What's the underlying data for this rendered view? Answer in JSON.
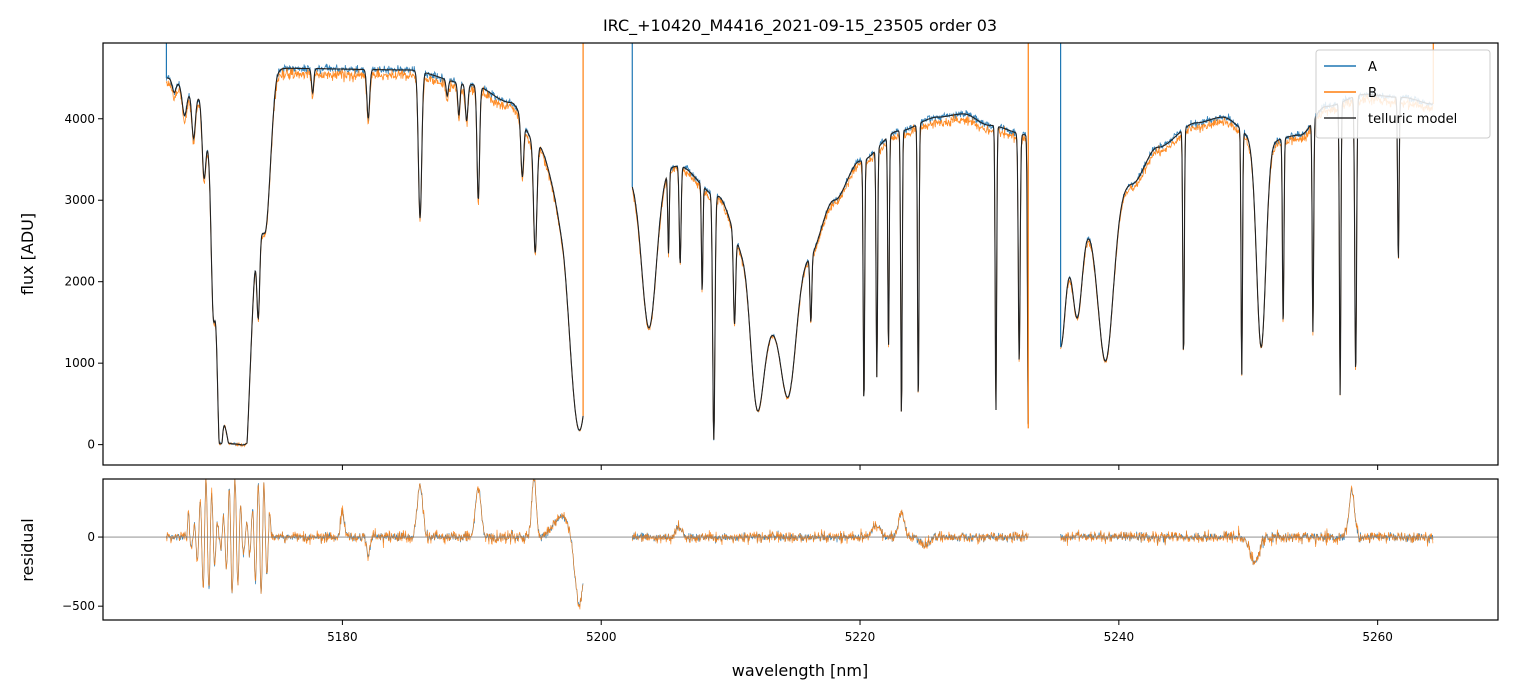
{
  "chart_data": {
    "type": "line",
    "title": "IRC_+10420_M4416_2021-09-15_23505  order 03",
    "xlabel": "wavelength [nm]",
    "xlim": [
      5161.5,
      5269.3
    ],
    "xticks": [
      5180,
      5200,
      5220,
      5240,
      5260
    ],
    "xtick_labels": [
      "5180",
      "5200",
      "5220",
      "5240",
      "5260"
    ],
    "legend": {
      "placement": "top-right",
      "entries": [
        "A",
        "B",
        "telluric model"
      ]
    },
    "colors": {
      "A": "#1f77b4",
      "B": "#ff7f0e",
      "model": "#222222",
      "zero_line": "#808080"
    },
    "segments": [
      [
        5166.4,
        5198.6
      ],
      [
        5202.4,
        5233.0
      ],
      [
        5235.5,
        5264.3
      ]
    ],
    "top_panel": {
      "ylabel": "flux [ADU]",
      "ylim": [
        -250,
        4930
      ],
      "yticks": [
        0,
        1000,
        2000,
        3000,
        4000
      ],
      "ytick_labels": [
        "0",
        "1000",
        "2000",
        "3000",
        "4000"
      ],
      "continuum_knots": [
        [
          5166.4,
          4500
        ],
        [
          5169,
          4300
        ],
        [
          5171,
          3300
        ],
        [
          5172.5,
          1400
        ],
        [
          5174,
          3900
        ],
        [
          5175,
          4620
        ],
        [
          5185,
          4600
        ],
        [
          5190,
          4420
        ],
        [
          5193,
          4200
        ],
        [
          5195,
          3700
        ],
        [
          5197,
          3000
        ],
        [
          5198.6,
          1400
        ],
        [
          5202.4,
          3300
        ],
        [
          5206,
          3420
        ],
        [
          5209,
          3050
        ],
        [
          5211,
          2400
        ],
        [
          5213,
          1500
        ],
        [
          5216,
          2300
        ],
        [
          5218,
          3000
        ],
        [
          5220,
          3480
        ],
        [
          5223,
          3850
        ],
        [
          5226,
          4020
        ],
        [
          5228,
          4060
        ],
        [
          5230,
          3920
        ],
        [
          5233,
          3800
        ],
        [
          5235.5,
          2400
        ],
        [
          5238,
          2700
        ],
        [
          5241,
          3200
        ],
        [
          5243,
          3650
        ],
        [
          5246,
          3950
        ],
        [
          5248,
          4020
        ],
        [
          5251,
          3700
        ],
        [
          5254,
          3800
        ],
        [
          5256,
          4150
        ],
        [
          5259,
          4300
        ],
        [
          5262,
          4260
        ],
        [
          5264.3,
          4180
        ]
      ],
      "absorption_lines": [
        [
          5167.0,
          0.2,
          150
        ],
        [
          5167.8,
          0.25,
          350
        ],
        [
          5168.5,
          0.2,
          550
        ],
        [
          5169.3,
          0.2,
          800
        ],
        [
          5170.0,
          0.2,
          1200
        ],
        [
          5170.5,
          0.25,
          1400
        ],
        [
          5171.2,
          1.1,
          3200
        ],
        [
          5172.5,
          0.5,
          900
        ],
        [
          5173.5,
          0.15,
          1000
        ],
        [
          5174.0,
          0.6,
          1300
        ],
        [
          5177.7,
          0.12,
          300
        ],
        [
          5182.0,
          0.15,
          600
        ],
        [
          5186.0,
          0.18,
          1800
        ],
        [
          5188.1,
          0.12,
          200
        ],
        [
          5189.0,
          0.12,
          400
        ],
        [
          5189.6,
          0.14,
          450
        ],
        [
          5190.5,
          0.14,
          1400
        ],
        [
          5193.9,
          0.15,
          700
        ],
        [
          5194.9,
          0.18,
          1350
        ],
        [
          5198.0,
          1.0,
          1500
        ],
        [
          5203.7,
          0.8,
          1900
        ],
        [
          5205.2,
          0.08,
          1000
        ],
        [
          5206.1,
          0.1,
          1200
        ],
        [
          5207.8,
          0.08,
          1300
        ],
        [
          5208.7,
          0.12,
          3000
        ],
        [
          5210.3,
          0.12,
          1100
        ],
        [
          5212.0,
          0.7,
          1500
        ],
        [
          5214.5,
          0.8,
          1300
        ],
        [
          5216.2,
          0.1,
          800
        ],
        [
          5220.3,
          0.08,
          3000
        ],
        [
          5221.3,
          0.08,
          2800
        ],
        [
          5222.2,
          0.08,
          2600
        ],
        [
          5223.2,
          0.08,
          3500
        ],
        [
          5224.5,
          0.08,
          3400
        ],
        [
          5230.5,
          0.08,
          3500
        ],
        [
          5232.3,
          0.1,
          2800
        ],
        [
          5233.0,
          0.08,
          3600
        ],
        [
          5235.5,
          0.5,
          1200
        ],
        [
          5236.8,
          0.5,
          1000
        ],
        [
          5239.0,
          0.8,
          1800
        ],
        [
          5245.0,
          0.08,
          2800
        ],
        [
          5249.5,
          0.08,
          3000
        ],
        [
          5251.0,
          0.5,
          2500
        ],
        [
          5252.7,
          0.08,
          2300
        ],
        [
          5255.0,
          0.08,
          2600
        ],
        [
          5257.1,
          0.08,
          3600
        ],
        [
          5258.3,
          0.1,
          3400
        ],
        [
          5261.6,
          0.08,
          2000
        ]
      ],
      "scale_A": 1.0,
      "scale_B": 0.985,
      "noise_A": 35,
      "noise_B": 45
    },
    "bottom_panel": {
      "ylabel": "residual",
      "ylim": [
        -600,
        420
      ],
      "yticks": [
        -500,
        0
      ],
      "ytick_labels": [
        "−500",
        "0"
      ],
      "noise": 35,
      "features": [
        [
          5168.0,
          5174.5,
          "oscillation",
          420
        ],
        [
          5180.0,
          0.2,
          180
        ],
        [
          5182.0,
          0.15,
          -150
        ],
        [
          5186.0,
          0.3,
          380
        ],
        [
          5190.5,
          0.3,
          350
        ],
        [
          5194.8,
          0.25,
          420
        ],
        [
          5197.0,
          0.9,
          150
        ],
        [
          5198.3,
          0.5,
          -500
        ],
        [
          5206.0,
          0.3,
          80
        ],
        [
          5221.3,
          0.4,
          90
        ],
        [
          5223.2,
          0.3,
          180
        ],
        [
          5225.0,
          0.5,
          -60
        ],
        [
          5250.5,
          0.5,
          -180
        ],
        [
          5258.0,
          0.3,
          330
        ]
      ]
    }
  }
}
